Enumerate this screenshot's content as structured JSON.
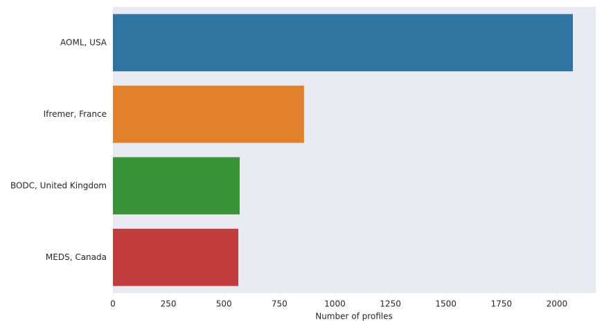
{
  "chart_data": {
    "type": "barh",
    "xlabel": "Number of profiles",
    "categories": [
      "AOML, USA",
      "Ifremer, France",
      "BODC, United Kingdom",
      "MEDS, Canada"
    ],
    "values": [
      2072,
      861,
      571,
      565
    ],
    "colors": [
      "#3274a1",
      "#e1812c",
      "#3a923a",
      "#c03d3e"
    ],
    "xlim": [
      0,
      2175
    ],
    "xticks": [
      0,
      250,
      500,
      750,
      1000,
      1250,
      1500,
      1750,
      2000
    ],
    "grid": false
  }
}
